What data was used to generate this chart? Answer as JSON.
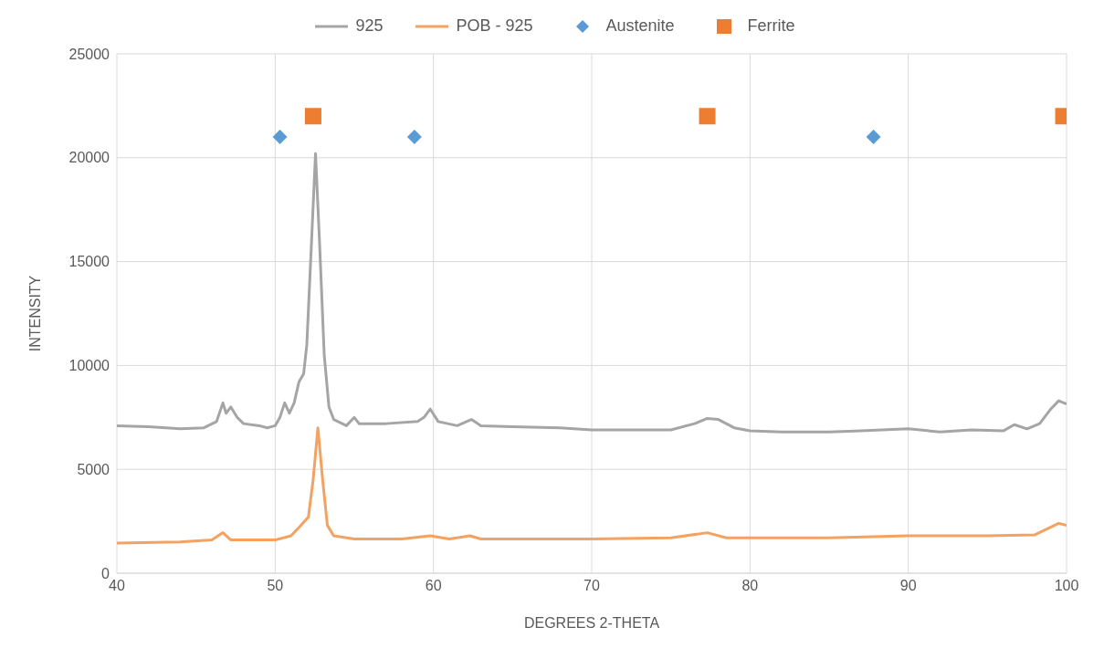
{
  "chart_data": {
    "type": "line",
    "xlabel": "DEGREES 2-THETA",
    "ylabel": "INTENSITY",
    "xlim": [
      40,
      100
    ],
    "xticks": [
      40,
      50,
      60,
      70,
      80,
      90,
      100
    ],
    "ylim": [
      0,
      25000
    ],
    "yticks": [
      0,
      5000,
      10000,
      15000,
      20000,
      25000
    ],
    "grid": true,
    "legend": "top",
    "series": [
      {
        "name": "925",
        "color": "#a5a5a5",
        "marker": "none",
        "x": [
          40,
          42,
          44,
          45.5,
          46.3,
          46.7,
          46.9,
          47.2,
          47.6,
          48,
          49,
          49.5,
          50,
          50.3,
          50.6,
          50.9,
          51.2,
          51.5,
          51.8,
          52,
          52.3,
          52.55,
          52.8,
          53.1,
          53.4,
          53.7,
          54.5,
          55,
          55.3,
          57,
          59,
          59.4,
          59.8,
          60.3,
          61.5,
          62.4,
          63,
          65,
          68,
          70,
          72,
          75,
          76.5,
          77.3,
          78,
          79,
          80,
          82,
          85,
          87,
          90,
          92,
          94,
          96,
          96.7,
          97.5,
          98.3,
          99,
          99.5,
          100
        ],
        "values": [
          7100,
          7050,
          6950,
          7000,
          7300,
          8200,
          7700,
          8000,
          7500,
          7200,
          7100,
          7000,
          7100,
          7500,
          8200,
          7700,
          8200,
          9200,
          9600,
          11000,
          16000,
          20200,
          16000,
          10500,
          8000,
          7400,
          7100,
          7500,
          7200,
          7200,
          7300,
          7500,
          7900,
          7300,
          7100,
          7400,
          7100,
          7050,
          7000,
          6900,
          6900,
          6900,
          7200,
          7450,
          7400,
          7000,
          6850,
          6800,
          6800,
          6850,
          6950,
          6800,
          6900,
          6850,
          7150,
          6950,
          7200,
          7900,
          8300,
          8150
        ]
      },
      {
        "name": "POB - 925",
        "color": "#f4a261",
        "marker": "none",
        "x": [
          40,
          44,
          46,
          46.7,
          47.2,
          50,
          51,
          51.5,
          52.1,
          52.4,
          52.7,
          53,
          53.3,
          53.7,
          55,
          58,
          59.8,
          61,
          62.3,
          63,
          70,
          75,
          77.3,
          78.5,
          85,
          90,
          95,
          98,
          99.5,
          100
        ],
        "values": [
          1450,
          1500,
          1600,
          1950,
          1600,
          1600,
          1800,
          2200,
          2700,
          4500,
          7000,
          4500,
          2300,
          1800,
          1650,
          1650,
          1800,
          1650,
          1800,
          1650,
          1650,
          1700,
          1950,
          1700,
          1700,
          1800,
          1800,
          1850,
          2400,
          2300
        ]
      },
      {
        "name": "Austenite",
        "type": "scatter",
        "color": "#5b9bd5",
        "marker": "diamond",
        "x": [
          50.3,
          58.8,
          87.8
        ],
        "values": [
          21000,
          21000,
          21000
        ]
      },
      {
        "name": "Ferrite",
        "type": "scatter",
        "color": "#ed7d31",
        "marker": "square",
        "x": [
          52.4,
          77.3,
          99.8
        ],
        "values": [
          22000,
          22000,
          22000
        ]
      }
    ]
  }
}
